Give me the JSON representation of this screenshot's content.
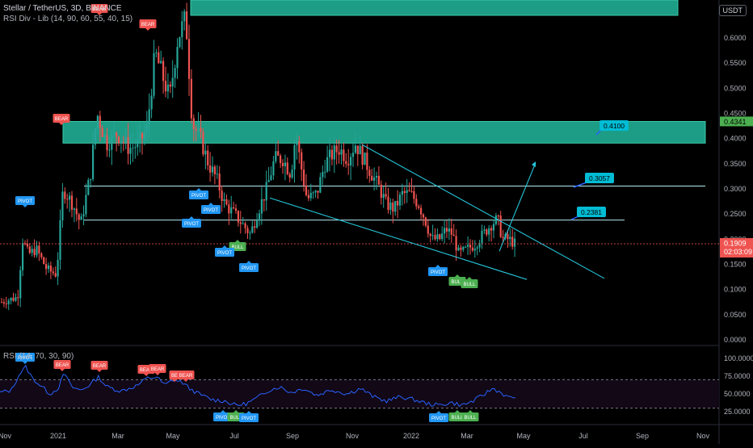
{
  "header": {
    "symbol_line": "Stellar / TetherUS, 3D, BINANCE",
    "indicator_line": "RSI Div - Lib (14, 90, 60, 55, 40, 15)",
    "rsi_pane_label": "RSI (14, 70, 30, 90)",
    "currency_button": "USDT"
  },
  "colors": {
    "background": "#000000",
    "up_candle": "#26a69a",
    "down_candle": "#ef5350",
    "zone_fill": "#1fa58e",
    "trendline": "#26c6da",
    "bear_badge": "#ef5350",
    "bull_badge": "#4caf50",
    "pivot_badge": "#2196f3",
    "rsi_line": "#2962ff",
    "price_line": "#ef5350",
    "level_label": "#00bcd4"
  },
  "price_axis": {
    "ticks": [
      "0.6000",
      "0.5500",
      "0.5000",
      "0.4500",
      "0.4000",
      "0.3500",
      "0.3000",
      "0.2500",
      "0.2000",
      "0.1500",
      "0.1000",
      "0.0500",
      "0.0000"
    ],
    "current_price": "0.1909",
    "countdown": "02:03:09",
    "zone_label": "0.4341"
  },
  "rsi_axis": {
    "ticks": [
      "100.0000",
      "75.0000",
      "50.0000",
      "25.0000"
    ]
  },
  "time_axis": {
    "ticks": [
      "Nov",
      "2021",
      "Mar",
      "May",
      "Jul",
      "Sep",
      "Nov",
      "2022",
      "Mar",
      "May",
      "Jul",
      "Sep",
      "Nov"
    ]
  },
  "level_labels": [
    "0.4100",
    "0.3057",
    "0.2381"
  ],
  "badge_text": {
    "bear": "BEAR",
    "bull": "BULL",
    "pivot": "PIVOT",
    "be": "BE"
  },
  "chart_data": {
    "type": "candlestick",
    "title": "Stellar / TetherUS, 3D, BINANCE",
    "ylim": [
      0,
      0.66
    ],
    "x": [
      "Nov 2020",
      "Dec 2020",
      "Jan 2021",
      "Feb 2021",
      "Mar 2021",
      "Apr 2021",
      "May 2021",
      "Jun 2021",
      "Jul 2021",
      "Aug 2021",
      "Sep 2021",
      "Oct 2021",
      "Nov 2021",
      "Dec 2021",
      "Jan 2022",
      "Feb 2022",
      "Mar 2022",
      "Apr 2022"
    ],
    "series": [
      {
        "name": "price",
        "values": [
          0.078,
          0.14,
          0.3,
          0.43,
          0.41,
          0.53,
          0.62,
          0.27,
          0.22,
          0.34,
          0.37,
          0.38,
          0.39,
          0.28,
          0.27,
          0.2,
          0.21,
          0.19
        ]
      },
      {
        "name": "RSI",
        "values": [
          52,
          88,
          64,
          70,
          55,
          72,
          70,
          36,
          34,
          56,
          52,
          56,
          50,
          42,
          50,
          37,
          52,
          44
        ]
      }
    ],
    "horizontal_levels": [
      0.41,
      0.3057,
      0.2381
    ],
    "resistance_zone": [
      0.391,
      0.434
    ],
    "rsi_levels": [
      70,
      30
    ],
    "last_price": 0.1909
  }
}
